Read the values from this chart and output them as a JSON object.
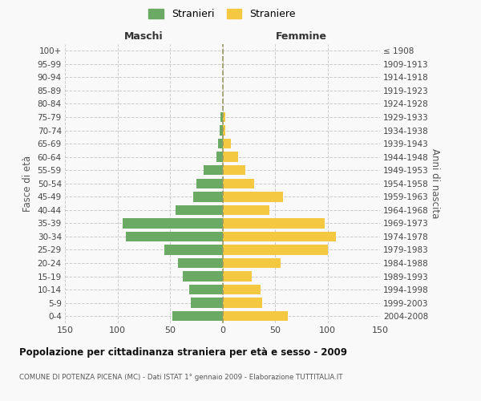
{
  "age_groups": [
    "0-4",
    "5-9",
    "10-14",
    "15-19",
    "20-24",
    "25-29",
    "30-34",
    "35-39",
    "40-44",
    "45-49",
    "50-54",
    "55-59",
    "60-64",
    "65-69",
    "70-74",
    "75-79",
    "80-84",
    "85-89",
    "90-94",
    "95-99",
    "100+"
  ],
  "birth_years": [
    "2004-2008",
    "1999-2003",
    "1994-1998",
    "1989-1993",
    "1984-1988",
    "1979-1983",
    "1974-1978",
    "1969-1973",
    "1964-1968",
    "1959-1963",
    "1954-1958",
    "1949-1953",
    "1944-1948",
    "1939-1943",
    "1934-1938",
    "1929-1933",
    "1924-1928",
    "1919-1923",
    "1914-1918",
    "1909-1913",
    "≤ 1908"
  ],
  "males": [
    48,
    30,
    32,
    38,
    42,
    55,
    92,
    95,
    45,
    28,
    25,
    18,
    6,
    4,
    3,
    2,
    0,
    0,
    0,
    0,
    0
  ],
  "females": [
    62,
    38,
    36,
    28,
    55,
    100,
    108,
    97,
    45,
    58,
    30,
    22,
    15,
    8,
    3,
    3,
    0,
    0,
    0,
    0,
    0
  ],
  "male_color": "#6aaa64",
  "female_color": "#f5c842",
  "bg_color": "#f9f9f9",
  "grid_color": "#cccccc",
  "title": "Popolazione per cittadinanza straniera per età e sesso - 2009",
  "subtitle": "COMUNE DI POTENZA PICENA (MC) - Dati ISTAT 1° gennaio 2009 - Elaborazione TUTTITALIA.IT",
  "maschi_label": "Maschi",
  "femmine_label": "Femmine",
  "ylabel_left": "Fasce di età",
  "ylabel_right": "Anni di nascita",
  "legend_male": "Stranieri",
  "legend_female": "Straniere",
  "xlim": 150
}
